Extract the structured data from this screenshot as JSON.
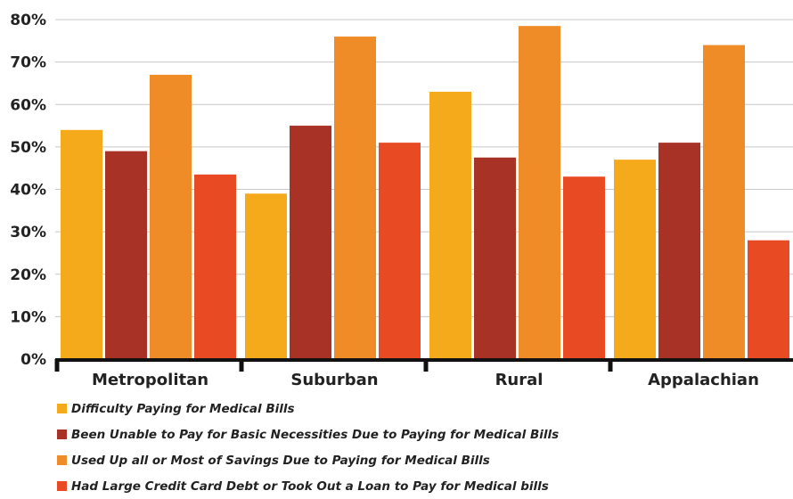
{
  "chart_data": {
    "type": "bar",
    "categories": [
      "Metropolitan",
      "Suburban",
      "Rural",
      "Appalachian"
    ],
    "series": [
      {
        "name": "Difficulty Paying for Medical Bills",
        "color": "#F5AA1C",
        "values": [
          54,
          39,
          63,
          47
        ]
      },
      {
        "name": "Been Unable to Pay for Basic Necessities Due to Paying for Medical Bills",
        "color": "#A93226",
        "values": [
          49,
          55,
          47.5,
          51
        ]
      },
      {
        "name": "Used Up all or Most of Savings Due to Paying for Medical Bills",
        "color": "#F08C28",
        "values": [
          67,
          76,
          78.5,
          74
        ]
      },
      {
        "name": "Had Large Credit Card Debt or Took Out a Loan to Pay for Medical bills",
        "color": "#E84A24",
        "values": [
          43.5,
          51,
          43,
          28
        ]
      }
    ],
    "yticks": [
      "0%",
      "10%",
      "20%",
      "30%",
      "40%",
      "50%",
      "60%",
      "70%",
      "80%"
    ],
    "ylim": [
      0,
      80
    ],
    "grid": true,
    "legend_position": "bottom-left",
    "title": "",
    "xlabel": "",
    "ylabel": ""
  }
}
